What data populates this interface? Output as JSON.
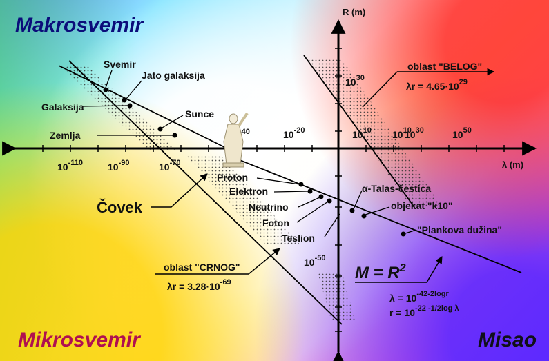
{
  "corners": {
    "top_left": "Makrosvemir",
    "bottom_left": "Mikrosvemir",
    "bottom_right": "Misao"
  },
  "colors": {
    "top_left": "#0b0d7a",
    "bottom_left": "#b01050",
    "bottom_right": "#101018"
  },
  "axes": {
    "vertical_label": "R (m)",
    "horizontal_label": "λ (m)"
  },
  "x_ticks": {
    "m110": {
      "base": "10",
      "exp": "-110"
    },
    "m90": {
      "base": "10",
      "exp": "-90"
    },
    "m70": {
      "base": "10",
      "exp": "-70"
    },
    "m40": {
      "base": "",
      "exp": "-40"
    },
    "m20": {
      "base": "10",
      "exp": "-20"
    },
    "p10a": {
      "base": "10",
      "exp": "10"
    },
    "p10b": {
      "base": "10",
      "exp": "10"
    },
    "p30": {
      "base": "10",
      "exp": "30"
    },
    "p50": {
      "base": "10",
      "exp": "50"
    }
  },
  "y_ticks": {
    "p30": {
      "base": "10",
      "exp": "30"
    },
    "m50": {
      "base": "10",
      "exp": "-50"
    }
  },
  "objects": {
    "svemir": "Svemir",
    "jato": "Jato galaksija",
    "galaksija": "Galaksija",
    "sunce": "Sunce",
    "zemlja": "Zemlja",
    "proton": "Proton",
    "elektron": "Elektron",
    "neutrino": "Neutrino",
    "foton": "Foton",
    "teslion": "Teslion",
    "talas": "α-Talas-čestica",
    "k10": "objekat \"k10\"",
    "planck": "\"Plankova dužina\"",
    "covek": "Čovek"
  },
  "regions": {
    "belog_title": "oblast \"BELOG\"",
    "belog_formula_base": "λr = 4.65·10",
    "belog_formula_exp": "29",
    "crnog_title": "oblast \"CRNOG\"",
    "crnog_formula_base": "λr = 3.28·10",
    "crnog_formula_exp": "-69"
  },
  "formulas": {
    "main": "M = R",
    "main_exp": "2",
    "lambda_base": "λ = 10",
    "lambda_exp": "-42-2logr",
    "r_base": "r = 10",
    "r_exp": "-22 -1/2log λ"
  }
}
